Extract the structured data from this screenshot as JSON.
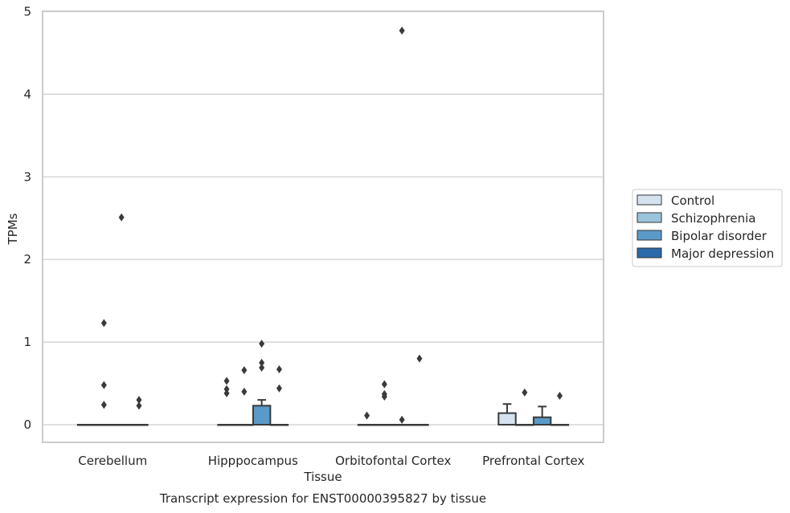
{
  "chart_data": {
    "type": "box",
    "title": "Transcript expression for ENST00000395827 by tissue",
    "xlabel": "Tissue",
    "ylabel": "TPMs",
    "ylim": [
      -0.22,
      5
    ],
    "yticks": [
      0,
      1,
      2,
      3,
      4,
      5
    ],
    "grid": true,
    "legend_position": "right",
    "categories": [
      "Cerebellum",
      "Hipppocampus",
      "Orbitofontal Cortex",
      "Prefrontal Cortex"
    ],
    "series": [
      {
        "name": "Control",
        "color": "#d5e3f1",
        "boxes": [
          {
            "q1": 0,
            "median": 0,
            "q3": 0,
            "whisker_low": 0,
            "whisker_high": 0,
            "outliers": []
          },
          {
            "q1": 0,
            "median": 0,
            "q3": 0,
            "whisker_low": 0,
            "whisker_high": 0,
            "outliers": [
              0.38,
              0.43,
              0.53
            ]
          },
          {
            "q1": 0,
            "median": 0,
            "q3": 0,
            "whisker_low": 0,
            "whisker_high": 0,
            "outliers": [
              0.11
            ]
          },
          {
            "q1": 0,
            "median": 0,
            "q3": 0.14,
            "whisker_low": 0,
            "whisker_high": 0.25,
            "outliers": []
          }
        ]
      },
      {
        "name": "Schizophrenia",
        "color": "#9ac4db",
        "boxes": [
          {
            "q1": 0,
            "median": 0,
            "q3": 0,
            "whisker_low": 0,
            "whisker_high": 0,
            "outliers": [
              0.24,
              0.48,
              1.23
            ]
          },
          {
            "q1": 0,
            "median": 0,
            "q3": 0,
            "whisker_low": 0,
            "whisker_high": 0,
            "outliers": [
              0.4,
              0.66
            ]
          },
          {
            "q1": 0,
            "median": 0,
            "q3": 0,
            "whisker_low": 0,
            "whisker_high": 0,
            "outliers": [
              0.34,
              0.37,
              0.49
            ]
          },
          {
            "q1": 0,
            "median": 0,
            "q3": 0,
            "whisker_low": 0,
            "whisker_high": 0,
            "outliers": [
              0.39
            ]
          }
        ]
      },
      {
        "name": "Bipolar disorder",
        "color": "#5a9ac8",
        "boxes": [
          {
            "q1": 0,
            "median": 0,
            "q3": 0,
            "whisker_low": 0,
            "whisker_high": 0,
            "outliers": [
              2.51
            ]
          },
          {
            "q1": 0,
            "median": 0,
            "q3": 0.23,
            "whisker_low": 0,
            "whisker_high": 0.3,
            "outliers": [
              0.69,
              0.75,
              0.98
            ]
          },
          {
            "q1": 0,
            "median": 0,
            "q3": 0,
            "whisker_low": 0,
            "whisker_high": 0,
            "outliers": [
              0.06,
              4.77
            ]
          },
          {
            "q1": 0,
            "median": 0,
            "q3": 0.09,
            "whisker_low": 0,
            "whisker_high": 0.22,
            "outliers": []
          }
        ]
      },
      {
        "name": "Major depression",
        "color": "#2a6aa8",
        "boxes": [
          {
            "q1": 0,
            "median": 0,
            "q3": 0,
            "whisker_low": 0,
            "whisker_high": 0,
            "outliers": [
              0.23,
              0.3
            ]
          },
          {
            "q1": 0,
            "median": 0,
            "q3": 0,
            "whisker_low": 0,
            "whisker_high": 0,
            "outliers": [
              0.44,
              0.67
            ]
          },
          {
            "q1": 0,
            "median": 0,
            "q3": 0,
            "whisker_low": 0,
            "whisker_high": 0,
            "outliers": [
              0.8
            ]
          },
          {
            "q1": 0,
            "median": 0,
            "q3": 0,
            "whisker_low": 0,
            "whisker_high": 0,
            "outliers": [
              0.35
            ]
          }
        ]
      }
    ]
  }
}
